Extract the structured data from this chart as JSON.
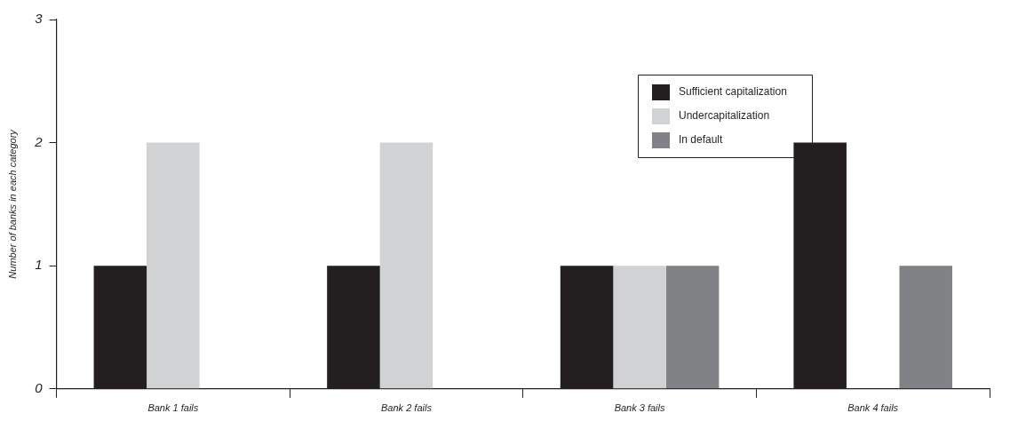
{
  "chart_data": {
    "type": "bar",
    "ylabel": "Number of banks in each category",
    "categories": [
      "Bank 1 fails",
      "Bank 2 fails",
      "Bank 3 fails",
      "Bank 4 fails"
    ],
    "series": [
      {
        "name": "Sufficient capitalization",
        "color": "#231f20",
        "values": [
          1,
          1,
          1,
          2
        ]
      },
      {
        "name": "Undercapitalization",
        "color": "#d1d2d4",
        "values": [
          2,
          2,
          1,
          null
        ]
      },
      {
        "name": "In default",
        "color": "#808285",
        "values": [
          null,
          null,
          1,
          1
        ]
      }
    ],
    "ylim": [
      0,
      3
    ],
    "yticks": [
      0,
      1,
      2,
      3
    ],
    "grid": false,
    "legend": "top right"
  }
}
